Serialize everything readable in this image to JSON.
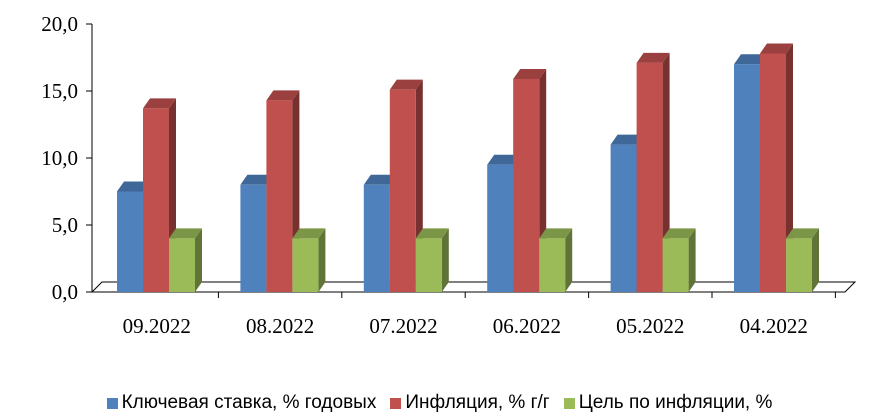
{
  "chart_data": {
    "type": "bar",
    "categories": [
      "09.2022",
      "08.2022",
      "07.2022",
      "06.2022",
      "05.2022",
      "04.2022"
    ],
    "series": [
      {
        "name": "Ключевая ставка, % годовых",
        "color": "#4F81BD",
        "values": [
          7.5,
          8.0,
          8.0,
          9.5,
          11.0,
          17.0
        ]
      },
      {
        "name": "Инфляция, % г/г",
        "color": "#C0504D",
        "values": [
          13.7,
          14.3,
          15.1,
          15.9,
          17.1,
          17.8
        ]
      },
      {
        "name": "Цель по инфляции, %",
        "color": "#9BBB59",
        "values": [
          4.0,
          4.0,
          4.0,
          4.0,
          4.0,
          4.0
        ]
      }
    ],
    "ylim": [
      0,
      20
    ],
    "yticks": [
      "0,0",
      "5,0",
      "10,0",
      "15,0",
      "20,0"
    ],
    "legend_position": "bottom",
    "grid": false
  }
}
